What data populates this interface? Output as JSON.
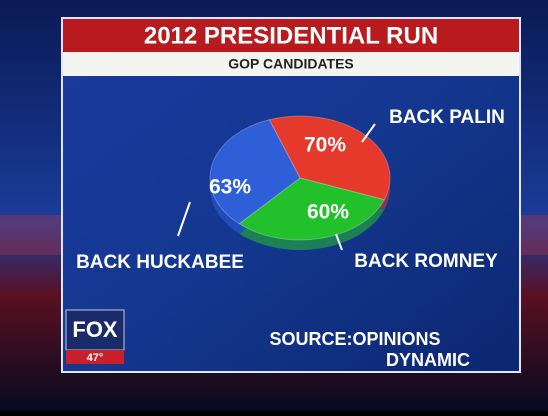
{
  "chart_data": {
    "type": "pie",
    "title": "2012 PRESIDENTIAL RUN",
    "subtitle": "GOP CANDIDATES",
    "categories": [
      "BACK PALIN",
      "BACK ROMNEY",
      "BACK HUCKABEE"
    ],
    "values": [
      70,
      60,
      63
    ],
    "value_labels": [
      "70%",
      "60%",
      "63%"
    ],
    "colors": [
      "#e5392b",
      "#22c02a",
      "#2f5fd8"
    ],
    "source": [
      "SOURCE:OPINIONS",
      "DYNAMIC"
    ]
  },
  "logo": {
    "text": "FOX",
    "temperature": "47°"
  }
}
